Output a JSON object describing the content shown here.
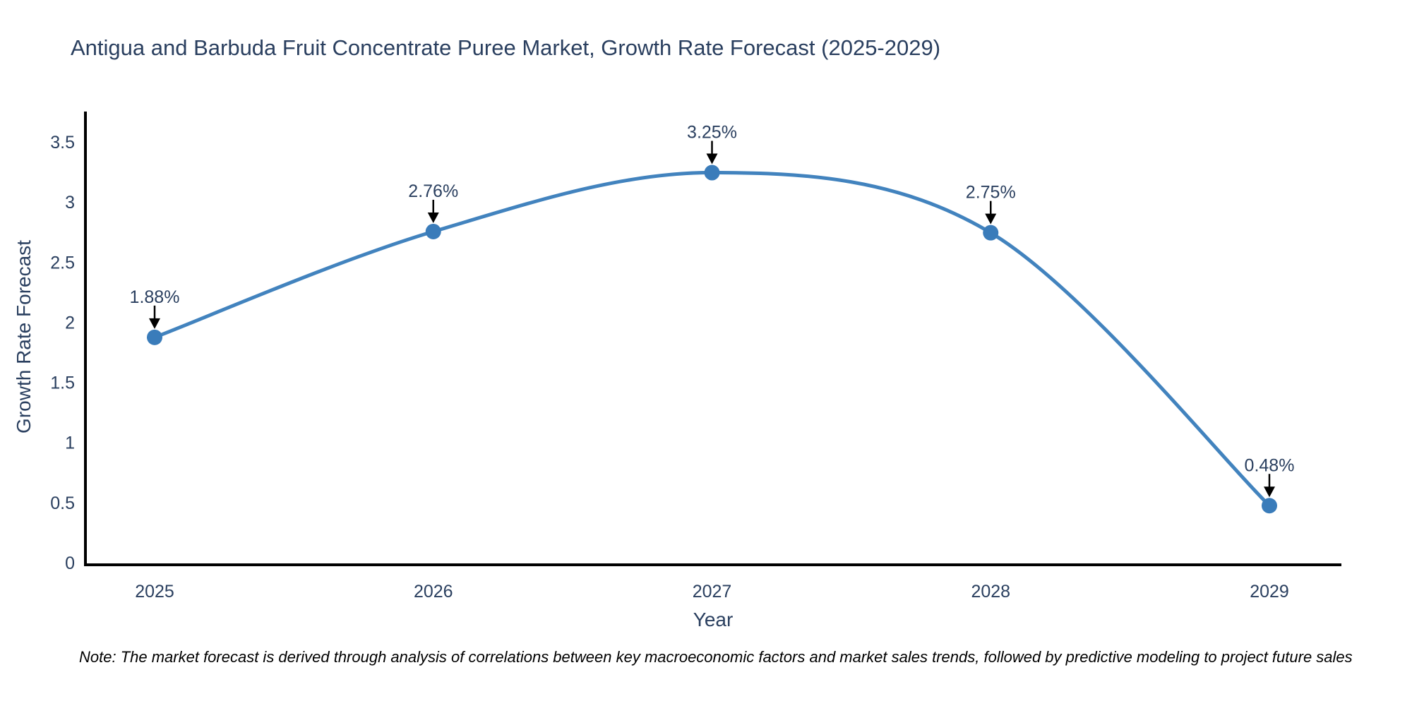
{
  "title": {
    "text": "Antigua and Barbuda Fruit Concentrate Puree Market, Growth Rate Forecast (2025-2029)",
    "color": "#2a3f5f"
  },
  "note": {
    "text": "Note: The market forecast is derived through analysis of correlations between key macroeconomic factors and market sales trends, followed by predictive modeling to project future sales"
  },
  "chart_data": {
    "type": "line",
    "title": "Antigua and Barbuda Fruit Concentrate Puree Market, Growth Rate Forecast (2025-2029)",
    "xlabel": "Year",
    "ylabel": "Growth Rate Forecast",
    "x": [
      2025,
      2026,
      2027,
      2028,
      2029
    ],
    "series": [
      {
        "name": "Growth Rate Forecast",
        "values": [
          1.88,
          2.76,
          3.25,
          2.75,
          0.48
        ]
      }
    ],
    "point_labels": [
      "1.88%",
      "2.76%",
      "3.25%",
      "2.75%",
      "0.48%"
    ],
    "yticks": [
      "0",
      "0.5",
      "1",
      "1.5",
      "2",
      "2.5",
      "3",
      "3.5"
    ],
    "ytick_values": [
      0,
      0.5,
      1,
      1.5,
      2,
      2.5,
      3,
      3.5
    ],
    "ylim": [
      0,
      3.74
    ],
    "line_shape": "spline",
    "grid": false,
    "legend": "none",
    "colors": {
      "line": "#4283be",
      "marker": "#3a7cba",
      "axis": "#000000",
      "tick_text": "#2a3f5f",
      "annotation_text": "#2a3f5f",
      "arrow": "#000000"
    }
  }
}
